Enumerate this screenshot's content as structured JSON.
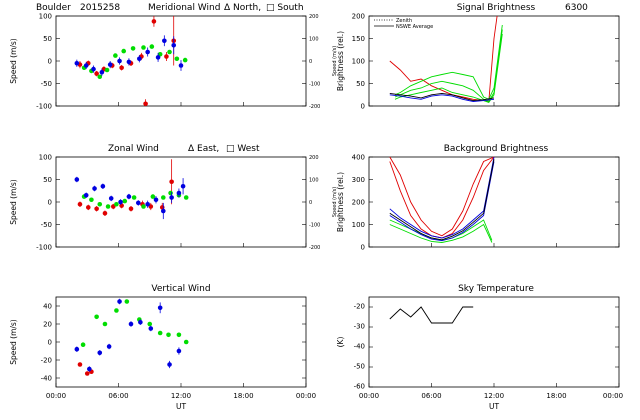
{
  "header": {
    "site": "Boulder",
    "date": "2015258"
  },
  "colors": {
    "red": "#e00000",
    "green": "#00dd00",
    "blue": "#0000e0",
    "black": "#000000"
  },
  "chart_data": [
    {
      "id": "meridional",
      "type": "scatter",
      "title": "Meridional Wind",
      "legend": [
        "Δ North,",
        "□ South"
      ],
      "ylabel": "Speed (m/s)",
      "ylabel_right": "Speed (m/s)",
      "xlabel": "",
      "xlim": [
        0,
        24
      ],
      "ylim": [
        -100,
        100
      ],
      "y_ticks": [
        -100,
        -50,
        0,
        50,
        100
      ],
      "y2_ticks": [
        -200,
        -100,
        0,
        100,
        200
      ],
      "x_ticks": [],
      "series": [
        {
          "color": "red",
          "x": [
            2.3,
            3.1,
            3.9,
            4.6,
            5.4,
            6.3,
            7.2,
            8.2,
            8.6,
            9.4,
            10.6,
            11.3
          ],
          "y": [
            -8,
            -5,
            -28,
            -18,
            -10,
            -15,
            -5,
            10,
            -95,
            88,
            10,
            45
          ],
          "err": [
            8,
            6,
            6,
            6,
            6,
            6,
            6,
            8,
            10,
            12,
            10,
            55
          ]
        },
        {
          "color": "green",
          "x": [
            2.7,
            3.4,
            4.2,
            4.9,
            5.7,
            6.5,
            7.4,
            8.4,
            9.2,
            10.0,
            10.9,
            11.6,
            12.4
          ],
          "y": [
            -15,
            -22,
            -35,
            -20,
            12,
            22,
            28,
            30,
            32,
            15,
            20,
            5,
            2
          ],
          "err": [
            0,
            0,
            0,
            0,
            0,
            0,
            0,
            0,
            0,
            0,
            0,
            0,
            0
          ]
        },
        {
          "color": "blue",
          "x": [
            2.0,
            2.9,
            3.6,
            4.4,
            5.2,
            6.1,
            7.0,
            8.0,
            8.8,
            9.8,
            10.4,
            11.3,
            12.0
          ],
          "y": [
            -5,
            -10,
            -18,
            -25,
            -8,
            0,
            -2,
            5,
            20,
            8,
            45,
            35,
            -10
          ],
          "err": [
            8,
            8,
            8,
            8,
            8,
            8,
            8,
            8,
            10,
            10,
            12,
            20,
            12
          ]
        }
      ]
    },
    {
      "id": "zonal",
      "type": "scatter",
      "title": "Zonal Wind",
      "legend": [
        "Δ East,",
        "□ West"
      ],
      "ylabel": "Speed (m/s)",
      "ylabel_right": "Speed (m/s)",
      "xlabel": "",
      "xlim": [
        0,
        24
      ],
      "ylim": [
        -100,
        100
      ],
      "y_ticks": [
        -100,
        -50,
        0,
        50,
        100
      ],
      "y2_ticks": [
        -200,
        -100,
        0,
        100,
        200
      ],
      "x_ticks": [],
      "series": [
        {
          "color": "red",
          "x": [
            2.3,
            3.1,
            3.9,
            4.7,
            5.5,
            6.3,
            7.2,
            8.3,
            9.1,
            10.2,
            11.1
          ],
          "y": [
            -5,
            -12,
            -15,
            -25,
            -10,
            -8,
            -15,
            -5,
            -10,
            -12,
            45
          ],
          "err": [
            6,
            6,
            6,
            6,
            6,
            6,
            6,
            8,
            8,
            10,
            50
          ]
        },
        {
          "color": "green",
          "x": [
            2.7,
            3.4,
            4.2,
            5.0,
            5.8,
            6.6,
            7.5,
            8.4,
            9.3,
            10.3,
            11.0,
            11.8,
            12.5
          ],
          "y": [
            12,
            5,
            -5,
            -10,
            -5,
            2,
            10,
            -10,
            12,
            10,
            20,
            15,
            10
          ],
          "err": [
            0,
            0,
            0,
            0,
            0,
            0,
            0,
            0,
            0,
            0,
            0,
            0,
            0
          ]
        },
        {
          "color": "blue",
          "x": [
            2.0,
            2.9,
            3.7,
            4.5,
            5.3,
            6.2,
            7.0,
            7.9,
            8.8,
            9.6,
            10.3,
            11.1,
            11.8,
            12.2
          ],
          "y": [
            50,
            15,
            30,
            35,
            8,
            0,
            12,
            -2,
            -5,
            5,
            -20,
            10,
            20,
            35
          ],
          "err": [
            6,
            6,
            6,
            6,
            6,
            6,
            6,
            6,
            8,
            8,
            18,
            12,
            10,
            18
          ]
        }
      ]
    },
    {
      "id": "vertical",
      "type": "scatter",
      "title": "Vertical Wind",
      "ylabel": "Speed (m/s)",
      "xlabel": "UT",
      "xlim": [
        0,
        24
      ],
      "ylim": [
        -50,
        50
      ],
      "y_ticks": [
        -40,
        -20,
        0,
        20,
        40
      ],
      "x_ticks": [
        "00:00",
        "06:00",
        "12:00",
        "18:00",
        "00:00"
      ],
      "series": [
        {
          "color": "red",
          "x": [
            2.3,
            3.0,
            3.4
          ],
          "y": [
            -25,
            -35,
            -33
          ],
          "err": [
            0,
            0,
            0
          ]
        },
        {
          "color": "green",
          "x": [
            2.6,
            3.9,
            4.7,
            5.8,
            6.8,
            8.0,
            9.0,
            10.0,
            10.8,
            11.8,
            12.5
          ],
          "y": [
            -3,
            28,
            20,
            35,
            45,
            25,
            20,
            10,
            8,
            8,
            0
          ],
          "err": [
            0,
            0,
            0,
            0,
            0,
            0,
            0,
            0,
            0,
            0,
            0
          ]
        },
        {
          "color": "blue",
          "x": [
            2.0,
            3.2,
            4.2,
            5.1,
            6.1,
            7.2,
            8.1,
            9.1,
            10.0,
            10.9,
            11.8
          ],
          "y": [
            -8,
            -30,
            -12,
            -5,
            45,
            20,
            22,
            15,
            38,
            -25,
            -10
          ],
          "err": [
            3,
            3,
            3,
            3,
            3,
            3,
            3,
            3,
            6,
            4,
            4
          ]
        }
      ]
    },
    {
      "id": "signal",
      "type": "line",
      "title": "Signal Brightness",
      "subtitle": "6300",
      "legend": [
        "Zenith",
        "NSWE Average"
      ],
      "ylabel": "Brightness (rel.)",
      "xlabel": "",
      "xlim": [
        0,
        24
      ],
      "ylim": [
        0,
        200
      ],
      "y_ticks": [
        0,
        50,
        100,
        150,
        200
      ],
      "x_ticks": [],
      "series": [
        {
          "color": "red",
          "x": [
            2,
            3,
            4,
            5,
            6,
            7,
            8,
            9,
            10,
            11,
            11.5,
            12,
            12.3
          ],
          "y": [
            100,
            80,
            55,
            60,
            45,
            35,
            25,
            20,
            15,
            12,
            10,
            150,
            200
          ]
        },
        {
          "color": "green",
          "x": [
            2.5,
            3,
            4,
            5,
            6,
            7,
            8,
            9,
            10,
            11,
            11.5,
            12,
            12.8
          ],
          "y": [
            25,
            30,
            45,
            55,
            65,
            70,
            75,
            70,
            65,
            20,
            15,
            40,
            180
          ]
        },
        {
          "color": "green",
          "x": [
            2.5,
            3,
            4,
            5,
            6,
            7,
            8,
            9,
            10,
            11,
            11.5,
            12,
            12.8
          ],
          "y": [
            20,
            25,
            35,
            40,
            50,
            55,
            50,
            45,
            35,
            15,
            10,
            30,
            170
          ]
        },
        {
          "color": "green",
          "x": [
            2.5,
            3,
            4,
            5,
            6,
            7,
            8,
            9,
            10,
            11,
            11.5,
            12,
            12.8
          ],
          "y": [
            15,
            20,
            25,
            30,
            35,
            40,
            30,
            25,
            20,
            12,
            8,
            25,
            160
          ]
        },
        {
          "color": "blue",
          "x": [
            2,
            3,
            4,
            5,
            6,
            7,
            8,
            9,
            10,
            11,
            12
          ],
          "y": [
            25,
            22,
            18,
            15,
            22,
            25,
            22,
            15,
            10,
            12,
            15
          ]
        },
        {
          "color": "black",
          "x": [
            2,
            3,
            4,
            5,
            6,
            7,
            8,
            9,
            10,
            11,
            12
          ],
          "y": [
            28,
            25,
            22,
            18,
            25,
            28,
            25,
            18,
            12,
            14,
            18
          ]
        }
      ]
    },
    {
      "id": "background",
      "type": "line",
      "title": "Background Brightness",
      "ylabel": "Brightness (rel.)",
      "xlabel": "",
      "xlim": [
        0,
        24
      ],
      "ylim": [
        0,
        400
      ],
      "y_ticks": [
        0,
        100,
        200,
        300,
        400
      ],
      "x_ticks": [],
      "series": [
        {
          "color": "red",
          "x": [
            2,
            3,
            4,
            5,
            6,
            7,
            8,
            9,
            10,
            11,
            12
          ],
          "y": [
            380,
            250,
            140,
            80,
            50,
            40,
            60,
            120,
            220,
            340,
            400
          ]
        },
        {
          "color": "red",
          "x": [
            2,
            3,
            4,
            5,
            6,
            7,
            8,
            9,
            10,
            11,
            12
          ],
          "y": [
            400,
            320,
            200,
            120,
            70,
            50,
            80,
            160,
            280,
            380,
            400
          ]
        },
        {
          "color": "green",
          "x": [
            2,
            3,
            4,
            5,
            6,
            7,
            8,
            9,
            10,
            11,
            11.8
          ],
          "y": [
            120,
            100,
            80,
            60,
            40,
            30,
            40,
            60,
            90,
            120,
            30
          ]
        },
        {
          "color": "green",
          "x": [
            2,
            3,
            4,
            5,
            6,
            7,
            8,
            9,
            10,
            11,
            11.8
          ],
          "y": [
            100,
            80,
            60,
            40,
            25,
            20,
            30,
            45,
            70,
            100,
            20
          ]
        },
        {
          "color": "blue",
          "x": [
            2,
            3,
            4,
            5,
            6,
            7,
            8,
            9,
            10,
            11,
            12
          ],
          "y": [
            170,
            130,
            100,
            70,
            50,
            40,
            55,
            80,
            120,
            160,
            400
          ]
        },
        {
          "color": "blue",
          "x": [
            2,
            3,
            4,
            5,
            6,
            7,
            8,
            9,
            10,
            11,
            12
          ],
          "y": [
            140,
            110,
            80,
            55,
            35,
            28,
            40,
            65,
            100,
            140,
            380
          ]
        },
        {
          "color": "black",
          "x": [
            2,
            3,
            4,
            5,
            6,
            7,
            8,
            9,
            10,
            11,
            12
          ],
          "y": [
            150,
            120,
            90,
            60,
            40,
            32,
            48,
            72,
            110,
            150,
            390
          ]
        }
      ]
    },
    {
      "id": "sky",
      "type": "line",
      "title": "Sky Temperature",
      "ylabel": "(K)",
      "xlabel": "UT",
      "xlim": [
        0,
        24
      ],
      "ylim": [
        -60,
        -15
      ],
      "y_ticks": [
        -60,
        -50,
        -40,
        -30,
        -20
      ],
      "x_ticks": [
        "00:00",
        "06:00",
        "12:00",
        "18:00",
        "00:00"
      ],
      "series": [
        {
          "color": "black",
          "x": [
            2,
            3,
            4,
            5,
            6,
            7,
            8,
            9,
            10
          ],
          "y": [
            -26,
            -21,
            -25,
            -20,
            -28,
            -28,
            -28,
            -20,
            -20
          ]
        }
      ]
    }
  ]
}
